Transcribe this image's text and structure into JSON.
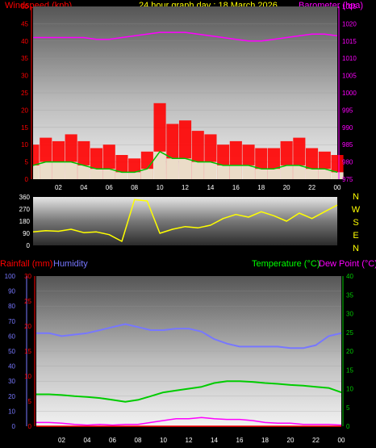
{
  "header": {
    "windspeed_label": "Windspeed (kph)",
    "title": "24 hour graph day : 18 March 2026",
    "barometer_label": "Barometer (hpa)",
    "rainfall_label": "Rainfall (mm)",
    "humidity_label": "Humidity",
    "temperature_label": "Temperature (°C)",
    "dewpoint_label": "Dew Point (°C)"
  },
  "colors": {
    "windspeed": "#ff0000",
    "gust": "#ff0000",
    "wind_avg": "#00c000",
    "barometer": "#ff00ff",
    "direction": "#ffff00",
    "humidity": "#7777ff",
    "temperature": "#00cc00",
    "dewpoint": "#ff00ff",
    "rainfall": "#ff0000",
    "header_yellow": "#ffff00",
    "header_green": "#00ff00"
  },
  "compass": [
    "N",
    "W",
    "S",
    "E",
    "N"
  ],
  "chart_data": [
    {
      "type": "line",
      "name": "wind-and-barometer",
      "x_ticks": [
        "02",
        "04",
        "06",
        "08",
        "10",
        "12",
        "14",
        "16",
        "18",
        "20",
        "22",
        "00"
      ],
      "y_left_ticks": [
        "0",
        "5",
        "10",
        "15",
        "20",
        "25",
        "30",
        "35",
        "40",
        "45",
        "50"
      ],
      "y_left_range": [
        0,
        50
      ],
      "y_right_ticks": [
        "975",
        "980",
        "985",
        "990",
        "995",
        "1000",
        "1005",
        "1010",
        "1015",
        "1020",
        "1025"
      ],
      "y_right_range": [
        975,
        1025
      ],
      "x": [
        0,
        1,
        2,
        3,
        4,
        5,
        6,
        7,
        8,
        9,
        10,
        11,
        12,
        13,
        14,
        15,
        16,
        17,
        18,
        19,
        20,
        21,
        22,
        23,
        24
      ],
      "series": [
        {
          "name": "Barometer (hpa)",
          "axis": "right",
          "values": [
            1016,
            1016,
            1016,
            1016,
            1016,
            1015.5,
            1015.5,
            1016,
            1016.5,
            1017,
            1017.5,
            1017.5,
            1017.5,
            1017,
            1016.5,
            1016,
            1015.5,
            1015,
            1015,
            1015.5,
            1016,
            1016.5,
            1017,
            1017,
            1016.5
          ]
        },
        {
          "name": "Gust",
          "axis": "left",
          "values": [
            10,
            12,
            11,
            13,
            11,
            9,
            10,
            7,
            6,
            8,
            22,
            16,
            17,
            14,
            13,
            10,
            11,
            10,
            9,
            9,
            11,
            12,
            9,
            8,
            7
          ]
        },
        {
          "name": "Windspeed",
          "axis": "left",
          "values": [
            4,
            5,
            5,
            5,
            4,
            3,
            3,
            2,
            2,
            3,
            8,
            6,
            6,
            5,
            5,
            4,
            4,
            4,
            3,
            3,
            4,
            4,
            3,
            3,
            2
          ]
        }
      ]
    },
    {
      "type": "line",
      "name": "wind-direction",
      "y_ticks": [
        "360",
        "270",
        "180",
        "90",
        "0"
      ],
      "y_range": [
        0,
        360
      ],
      "x": [
        0,
        1,
        2,
        3,
        4,
        5,
        6,
        7,
        8,
        9,
        10,
        11,
        12,
        13,
        14,
        15,
        16,
        17,
        18,
        19,
        20,
        21,
        22,
        23,
        24
      ],
      "series": [
        {
          "name": "Direction",
          "values": [
            100,
            110,
            105,
            120,
            95,
            100,
            80,
            30,
            340,
            330,
            90,
            120,
            140,
            130,
            150,
            200,
            230,
            210,
            250,
            220,
            180,
            240,
            200,
            250,
            300
          ]
        }
      ]
    },
    {
      "type": "line",
      "name": "rain-humidity-temperature",
      "x_ticks": [
        "02",
        "04",
        "06",
        "08",
        "10",
        "12",
        "14",
        "16",
        "18",
        "20",
        "22",
        "00"
      ],
      "humidity_ticks": [
        "0",
        "10",
        "20",
        "30",
        "40",
        "50",
        "60",
        "70",
        "80",
        "90",
        "100"
      ],
      "humidity_range": [
        0,
        100
      ],
      "rain_ticks": [
        "0",
        "5",
        "10",
        "15",
        "20",
        "25",
        "30"
      ],
      "rain_range": [
        0,
        30
      ],
      "temp_ticks": [
        "0",
        "5",
        "10",
        "15",
        "20",
        "25",
        "30",
        "35",
        "40"
      ],
      "temp_range": [
        0,
        40
      ],
      "x": [
        0,
        1,
        2,
        3,
        4,
        5,
        6,
        7,
        8,
        9,
        10,
        11,
        12,
        13,
        14,
        15,
        16,
        17,
        18,
        19,
        20,
        21,
        22,
        23,
        24
      ],
      "series": [
        {
          "name": "Humidity",
          "axis": "humidity",
          "values": [
            62,
            62,
            60,
            61,
            62,
            64,
            66,
            68,
            66,
            64,
            64,
            65,
            65,
            63,
            58,
            55,
            53,
            53,
            53,
            53,
            52,
            52,
            54,
            60,
            62
          ]
        },
        {
          "name": "Temperature (°C)",
          "axis": "temp",
          "values": [
            8.5,
            8.5,
            8.3,
            8.0,
            7.8,
            7.5,
            7.0,
            6.5,
            7.0,
            8.0,
            9.0,
            9.5,
            10.0,
            10.5,
            11.5,
            12.0,
            12.0,
            11.8,
            11.5,
            11.3,
            11.0,
            10.8,
            10.5,
            10.2,
            9.0
          ]
        },
        {
          "name": "Dew Point (°C)",
          "axis": "temp",
          "values": [
            1.0,
            1.0,
            0.8,
            0.5,
            0.3,
            0.5,
            0.3,
            0.5,
            0.5,
            1.0,
            1.5,
            2.0,
            2.0,
            2.3,
            2.0,
            1.8,
            1.8,
            1.5,
            1.0,
            0.8,
            0.8,
            0.5,
            0.5,
            0.5,
            0.3
          ]
        },
        {
          "name": "Rainfall (mm)",
          "axis": "rain",
          "values": [
            0,
            0,
            0,
            0,
            0,
            0,
            0,
            0,
            0,
            0,
            0,
            0,
            0,
            0,
            0,
            0,
            0,
            0,
            0,
            0,
            0,
            0,
            0,
            0,
            0
          ]
        }
      ]
    }
  ]
}
